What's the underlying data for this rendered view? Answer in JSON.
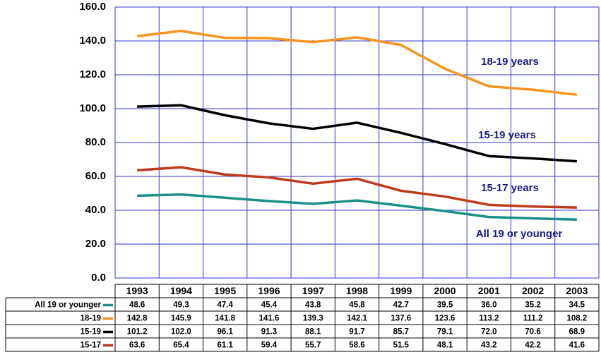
{
  "chart_data": {
    "type": "line",
    "categories": [
      "1993",
      "1994",
      "1995",
      "1996",
      "1997",
      "1998",
      "1999",
      "2000",
      "2001",
      "2002",
      "2003"
    ],
    "series": [
      {
        "name": "All 19 or younger",
        "color": "#1b9088",
        "values": [
          48.6,
          49.3,
          47.4,
          45.4,
          43.8,
          45.8,
          42.7,
          39.5,
          36.0,
          35.2,
          34.5
        ],
        "value_labels": [
          "48.6",
          "49.3",
          "47.4",
          "45.4",
          "43.8",
          "45.8",
          "42.7",
          "39.5",
          "36.0",
          "35.2",
          "34.5"
        ]
      },
      {
        "name": "18-19",
        "color": "#f7941d",
        "values": [
          142.8,
          145.9,
          141.8,
          141.6,
          139.3,
          142.1,
          137.6,
          123.6,
          113.2,
          111.2,
          108.2
        ],
        "value_labels": [
          "142.8",
          "145.9",
          "141.8",
          "141.6",
          "139.3",
          "142.1",
          "137.6",
          "123.6",
          "113.2",
          "111.2",
          "108.2"
        ]
      },
      {
        "name": "15-19",
        "color": "#000000",
        "values": [
          101.2,
          102.0,
          96.1,
          91.3,
          88.1,
          91.7,
          85.7,
          79.1,
          72.0,
          70.6,
          68.9
        ],
        "value_labels": [
          "101.2",
          "102.0",
          "96.1",
          "91.3",
          "88.1",
          "91.7",
          "85.7",
          "79.1",
          "72.0",
          "70.6",
          "68.9"
        ]
      },
      {
        "name": "15-17",
        "color": "#c0391b",
        "values": [
          63.6,
          65.4,
          61.1,
          59.4,
          55.7,
          58.6,
          51.5,
          48.1,
          43.2,
          42.2,
          41.6
        ],
        "value_labels": [
          "63.6",
          "65.4",
          "61.1",
          "59.4",
          "55.7",
          "58.6",
          "51.5",
          "48.1",
          "43.2",
          "42.2",
          "41.6"
        ]
      }
    ],
    "annotations": [
      "All 19 or younger",
      "18-19 years",
      "15-19 years",
      "15-17 years"
    ],
    "ylim": [
      0,
      160
    ],
    "yticks": [
      {
        "value": 0,
        "label": "0.0"
      },
      {
        "value": 20,
        "label": "20.0"
      },
      {
        "value": 40,
        "label": "40.0"
      },
      {
        "value": 60,
        "label": "60.0"
      },
      {
        "value": 80,
        "label": "80.0"
      },
      {
        "value": 100,
        "label": "100.0"
      },
      {
        "value": 120,
        "label": "120.0"
      },
      {
        "value": 140,
        "label": "140.0"
      },
      {
        "value": 160,
        "label": "160.0"
      }
    ],
    "grid": true,
    "grid_color": "#3333cc"
  }
}
